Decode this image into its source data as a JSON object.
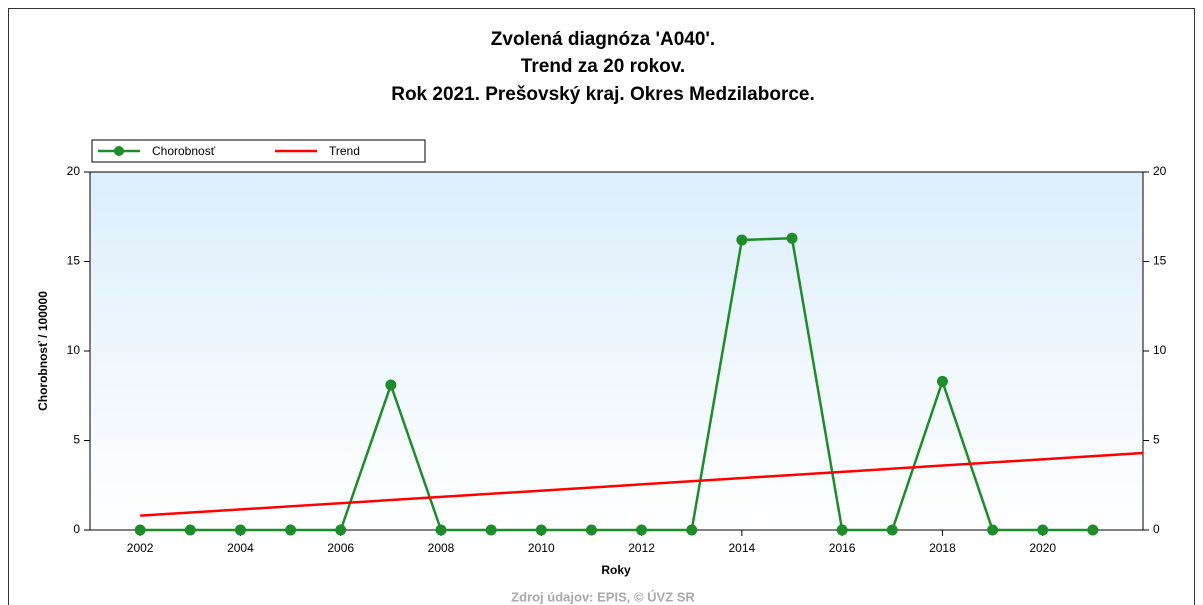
{
  "chart_data": {
    "type": "line",
    "title": [
      "Zvolená diagnóza 'A040'.",
      "Trend za 20 rokov.",
      "Rok 2021. Prešovský kraj. Okres Medzilaborce."
    ],
    "x_label": "Roky",
    "y_label": "Chorobnosť / 100000",
    "source": "Zdroj údajov: EPIS, © ÚVZ SR",
    "xlim": [
      2001,
      2022
    ],
    "xticks": [
      2002,
      2004,
      2006,
      2008,
      2010,
      2012,
      2014,
      2016,
      2018,
      2020
    ],
    "ylim": [
      0,
      20
    ],
    "yticks": [
      0,
      5,
      10,
      15,
      20
    ],
    "y2lim": [
      0,
      20
    ],
    "y2ticks": [
      0,
      5,
      10,
      15,
      20
    ],
    "legend": "top-left",
    "series": [
      {
        "name": "Chorobnosť",
        "color": "#1e8c2a",
        "markers": true,
        "x": [
          2002,
          2003,
          2004,
          2005,
          2006,
          2007,
          2008,
          2009,
          2010,
          2011,
          2012,
          2013,
          2014,
          2015,
          2016,
          2017,
          2018,
          2019,
          2020,
          2021
        ],
        "values": [
          0,
          0,
          0,
          0,
          0,
          8.1,
          0,
          0,
          0,
          0,
          0,
          0,
          16.2,
          16.3,
          0,
          0,
          8.3,
          0,
          0,
          0
        ]
      },
      {
        "name": "Trend",
        "color": "#ff0000",
        "markers": false,
        "x": [
          2002,
          2022
        ],
        "values": [
          0.8,
          4.3
        ]
      }
    ]
  }
}
